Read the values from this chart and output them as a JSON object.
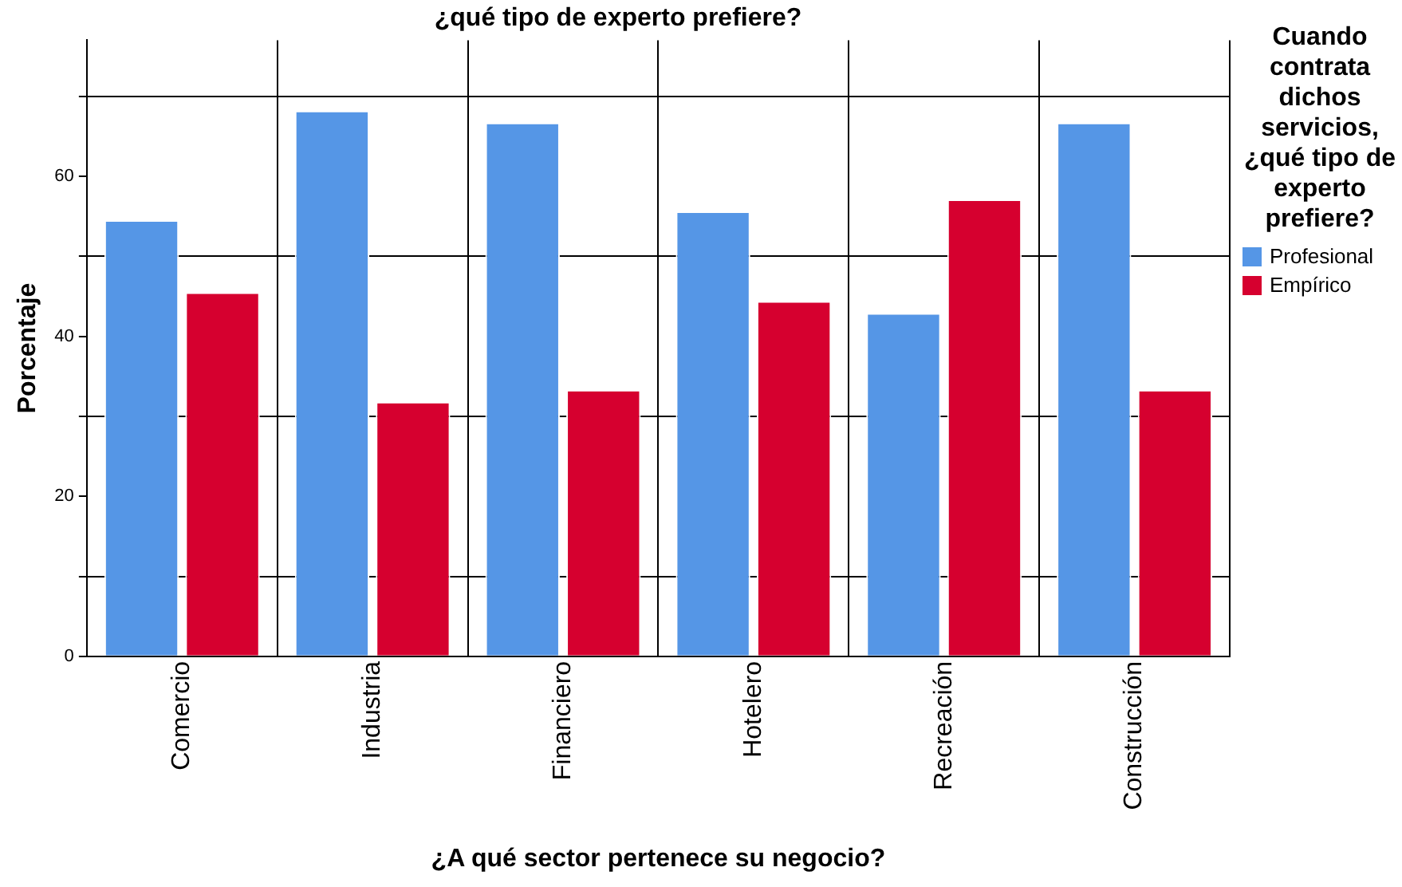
{
  "chart_data": {
    "type": "bar",
    "title": "¿qué tipo de experto prefiere?",
    "xlabel": "¿A qué sector pertenece su negocio?",
    "ylabel": "Porcentaje",
    "legend_title": "Cuando contrata dichos servicios, ¿qué tipo de experto prefiere?",
    "categories": [
      "Comercio",
      "Industria",
      "Financiero",
      "Hotelero",
      "Recreación",
      "Construcción"
    ],
    "series": [
      {
        "name": "Profesional",
        "color": "#5596e6",
        "values": [
          54.5,
          68.2,
          66.7,
          55.6,
          42.9,
          66.7
        ]
      },
      {
        "name": "Empírico",
        "color": "#d6002f",
        "values": [
          45.5,
          31.8,
          33.3,
          44.4,
          57.1,
          33.3
        ]
      }
    ],
    "ylim": [
      0,
      77
    ],
    "yticks": [
      0,
      {
        "value": 10,
        "label": null
      },
      20,
      {
        "value": 30,
        "label": null
      },
      40,
      {
        "value": 50,
        "label": null
      },
      60,
      {
        "value": 70,
        "label": null
      }
    ],
    "grid": true,
    "legend": "right"
  }
}
